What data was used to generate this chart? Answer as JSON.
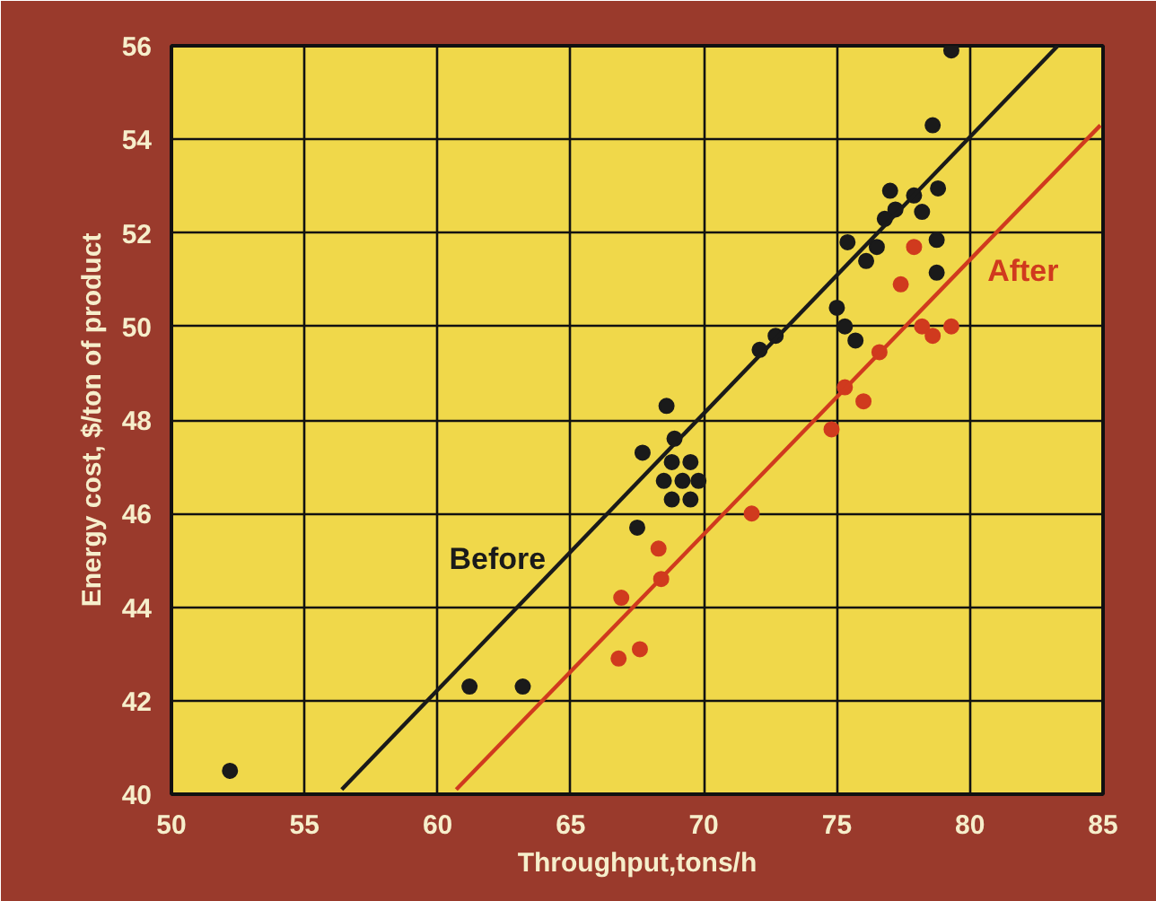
{
  "chart_data": {
    "type": "scatter",
    "xlabel": "Throughput,tons/h",
    "ylabel": "Energy cost, $/ton of product",
    "xlim": [
      50,
      85
    ],
    "xticks": [
      50,
      55,
      60,
      65,
      70,
      75,
      80,
      85
    ],
    "ylim": [
      40,
      56
    ],
    "yticks": [
      40,
      42,
      44,
      46,
      48,
      50,
      52,
      54,
      56
    ],
    "grid": true,
    "series": [
      {
        "color": "#1a1a1a",
        "marker": "circle",
        "x": [
          52.2,
          61.2,
          63.2,
          67.5,
          67.7,
          68.6,
          68.9,
          68.8,
          69.5,
          68.5,
          69.2,
          69.8,
          68.8,
          69.5,
          72.1,
          72.7,
          75.0,
          75.3,
          75.7,
          75.4,
          76.5,
          76.1,
          76.8,
          77.2,
          77.0,
          77.9,
          78.2,
          78.8,
          78.75,
          78.75,
          78.6,
          79.3
        ],
        "values": [
          40.5,
          42.3,
          42.3,
          45.7,
          47.3,
          48.3,
          47.6,
          47.1,
          47.1,
          46.7,
          46.7,
          46.7,
          46.3,
          46.3,
          49.5,
          49.8,
          50.4,
          50.0,
          49.7,
          51.8,
          51.7,
          51.4,
          52.3,
          52.5,
          52.9,
          52.8,
          52.45,
          52.95,
          51.85,
          51.15,
          54.3,
          55.9
        ]
      },
      {
        "color": "#d03a1e",
        "marker": "circle",
        "x": [
          66.8,
          67.6,
          66.9,
          68.4,
          68.3,
          71.8,
          74.8,
          75.3,
          76.0,
          76.6,
          77.4,
          77.9,
          78.2,
          78.6,
          79.3
        ],
        "values": [
          42.9,
          43.1,
          44.2,
          44.6,
          45.25,
          46.0,
          47.8,
          48.7,
          48.4,
          49.45,
          50.9,
          51.7,
          50.0,
          49.8,
          50.0
        ]
      },
      {
        "type": "line",
        "name": "Before",
        "color": "#1a1a1a",
        "x": [
          56.4,
          83.3
        ],
        "values": [
          40.1,
          56.0
        ]
      },
      {
        "type": "line",
        "name": "After",
        "color": "#d03a1e",
        "x": [
          60.7,
          84.9
        ],
        "values": [
          40.1,
          54.3
        ]
      }
    ]
  }
}
